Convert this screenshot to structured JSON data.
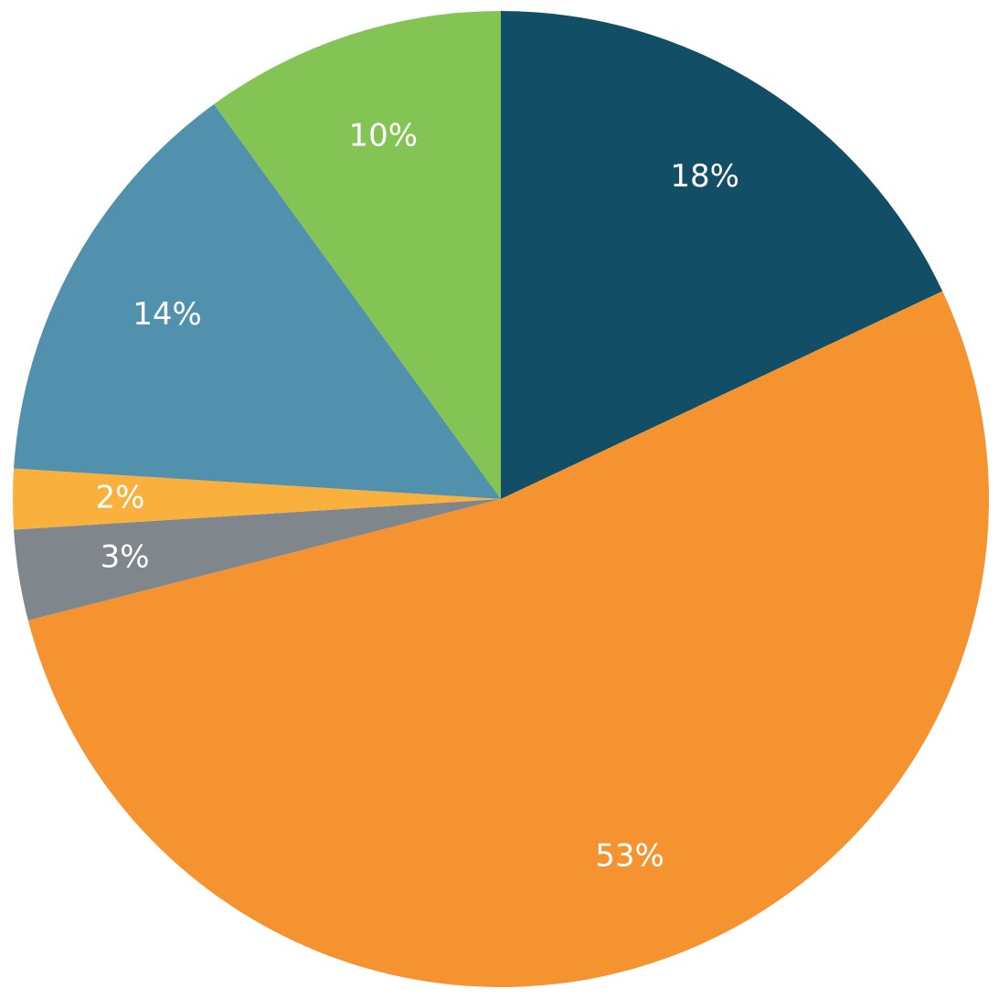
{
  "chart_data": {
    "type": "pie",
    "values": [
      18,
      53,
      3,
      2,
      14,
      10
    ],
    "value_labels": [
      "18%",
      "53%",
      "3%",
      "2%",
      "14%",
      "10%"
    ],
    "colors": [
      "#124f66",
      "#f69331",
      "#7f868c",
      "#f9b03d",
      "#5291ad",
      "#84c455"
    ]
  }
}
